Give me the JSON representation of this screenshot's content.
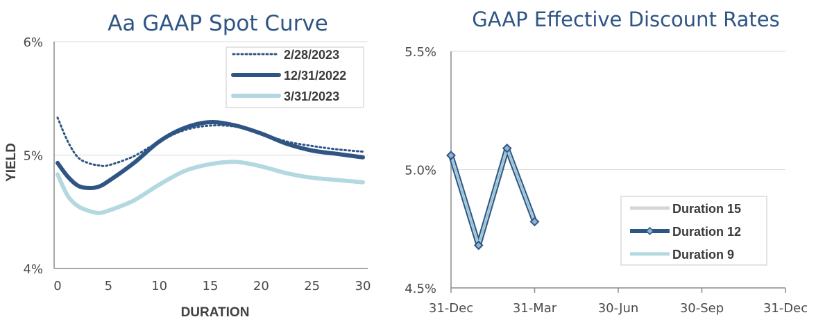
{
  "chart_data": [
    {
      "type": "line",
      "title": "Aa GAAP Spot Curve",
      "xlabel": "DURATION",
      "ylabel": "YIELD",
      "xlim": [
        0,
        30
      ],
      "ylim": [
        4,
        6
      ],
      "x_ticks": [
        0,
        5,
        10,
        15,
        20,
        25,
        30
      ],
      "x_tick_labels": [
        "0",
        "5",
        "10",
        "15",
        "20",
        "25",
        "30"
      ],
      "y_ticks": [
        4,
        5,
        6
      ],
      "y_tick_labels": [
        "4%",
        "5%",
        "6%"
      ],
      "grid": "horizontal",
      "legend_position": "top-right",
      "series": [
        {
          "name": "2/28/2023",
          "color": "#2f5585",
          "style": "dotted",
          "x": [
            0,
            1,
            2,
            3,
            4,
            5,
            7.5,
            10,
            12.5,
            15,
            17.5,
            20,
            22.5,
            25,
            27.5,
            30
          ],
          "values": [
            5.33,
            5.12,
            4.98,
            4.93,
            4.91,
            4.91,
            4.99,
            5.12,
            5.22,
            5.26,
            5.25,
            5.19,
            5.12,
            5.08,
            5.05,
            5.03
          ]
        },
        {
          "name": "12/31/2022",
          "color": "#2f5585",
          "style": "thick",
          "x": [
            0,
            1,
            2,
            3,
            4,
            5,
            7.5,
            10,
            12.5,
            15,
            17.5,
            20,
            22.5,
            25,
            27.5,
            30
          ],
          "values": [
            4.93,
            4.81,
            4.73,
            4.71,
            4.72,
            4.77,
            4.93,
            5.12,
            5.24,
            5.29,
            5.26,
            5.19,
            5.1,
            5.04,
            5.01,
            4.98
          ]
        },
        {
          "name": "3/31/2023",
          "color": "#b3d8e0",
          "style": "thick",
          "x": [
            0,
            1,
            2,
            3,
            4,
            5,
            7.5,
            10,
            12.5,
            15,
            17.5,
            20,
            22.5,
            25,
            27.5,
            30
          ],
          "values": [
            4.83,
            4.64,
            4.55,
            4.51,
            4.49,
            4.51,
            4.6,
            4.74,
            4.86,
            4.92,
            4.94,
            4.9,
            4.84,
            4.8,
            4.78,
            4.76
          ]
        }
      ]
    },
    {
      "type": "line",
      "title": "GAAP Effective Discount Rates",
      "xlabel": "",
      "ylabel": "",
      "ylim": [
        4.5,
        5.5
      ],
      "x_tick_labels": [
        "31-Dec",
        "31-Mar",
        "30-Jun",
        "30-Sep",
        "31-Dec"
      ],
      "y_ticks": [
        4.5,
        5.0,
        5.5
      ],
      "y_tick_labels": [
        "4.5%",
        "5.0%",
        "5.5%"
      ],
      "grid": "horizontal",
      "legend_position": "bottom-right",
      "x_domain": [
        0,
        4
      ],
      "points_x": [
        0,
        0.33,
        0.67,
        1
      ],
      "series": [
        {
          "name": "Duration 15",
          "color": "#d4d6dc",
          "style": "line",
          "values": [
            5.06,
            4.68,
            5.09,
            4.78
          ]
        },
        {
          "name": "Duration 12",
          "color": "#2f5585",
          "style": "line-marker",
          "values": [
            5.06,
            4.68,
            5.09,
            4.78
          ]
        },
        {
          "name": "Duration 9",
          "color": "#b3d8e0",
          "style": "line",
          "values": [
            5.06,
            4.68,
            5.09,
            4.78
          ]
        }
      ]
    }
  ]
}
